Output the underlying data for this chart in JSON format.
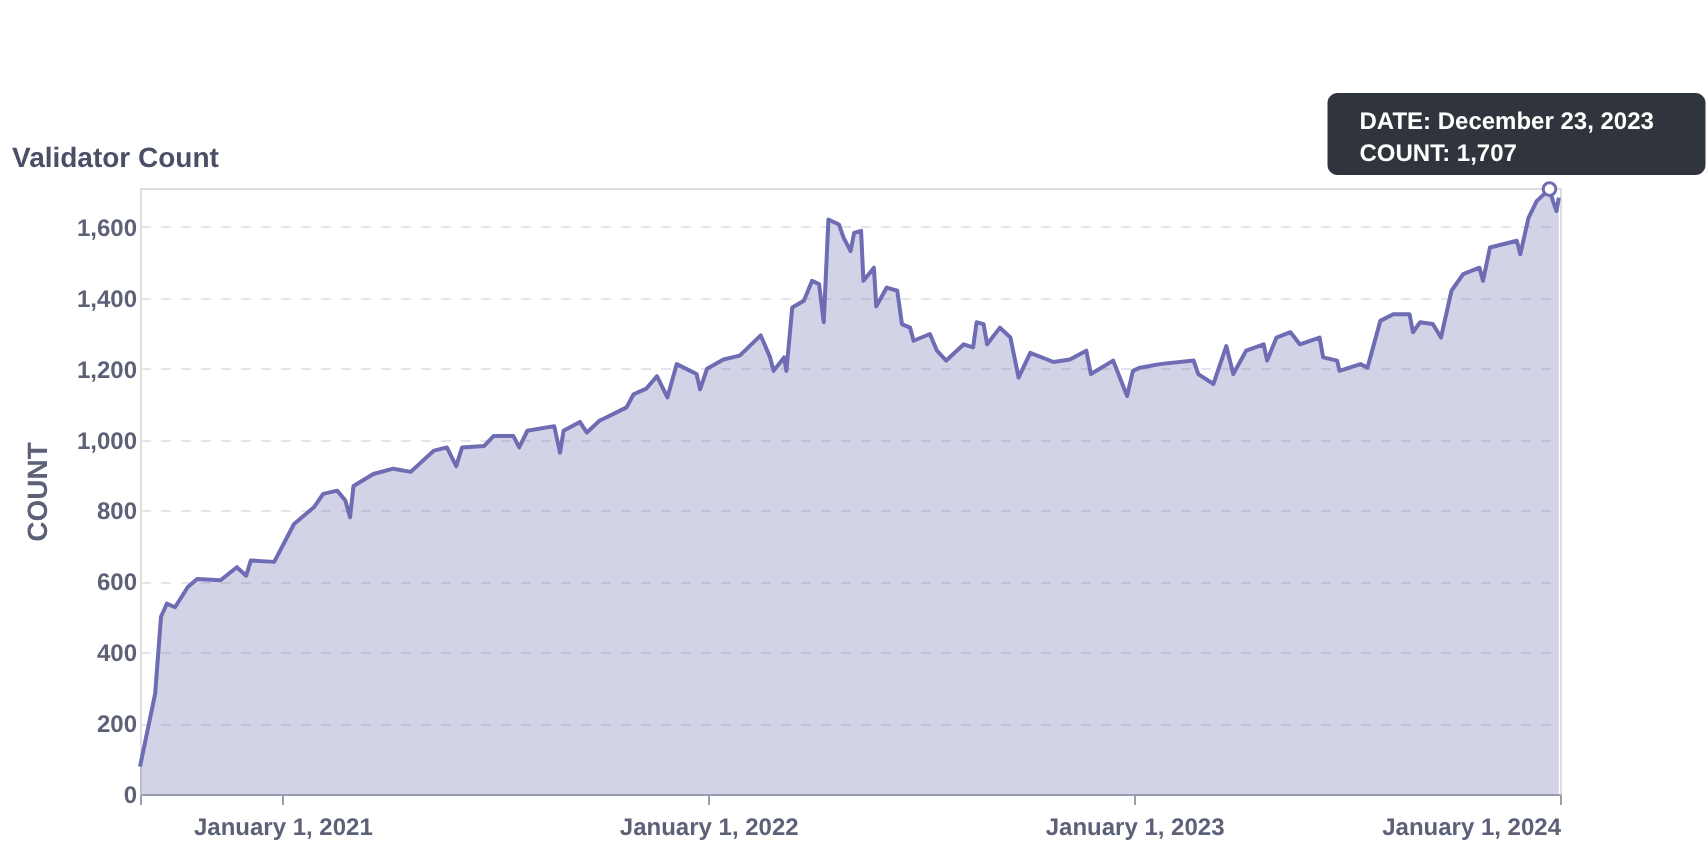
{
  "chart_data": {
    "type": "area",
    "title": "Validator Count",
    "ylabel": "COUNT",
    "x": [
      "2020-09-01",
      "2020-09-14",
      "2020-09-19",
      "2020-09-24",
      "2020-10-01",
      "2020-10-12",
      "2020-10-20",
      "2020-11-09",
      "2020-11-23",
      "2020-12-01",
      "2020-12-05",
      "2020-12-25",
      "2021-01-11",
      "2021-01-28",
      "2021-02-05",
      "2021-02-17",
      "2021-02-24",
      "2021-02-28",
      "2021-03-03",
      "2021-03-20",
      "2021-04-06",
      "2021-04-21",
      "2021-05-11",
      "2021-05-22",
      "2021-05-30",
      "2021-06-04",
      "2021-06-23",
      "2021-07-01",
      "2021-07-18",
      "2021-07-23",
      "2021-07-30",
      "2021-08-22",
      "2021-08-27",
      "2021-08-30",
      "2021-09-13",
      "2021-09-19",
      "2021-09-30",
      "2021-10-06",
      "2021-10-23",
      "2021-10-29",
      "2021-11-09",
      "2021-11-18",
      "2021-11-27",
      "2021-12-05",
      "2021-12-22",
      "2021-12-25",
      "2021-12-31",
      "2022-01-14",
      "2022-01-28",
      "2022-02-15",
      "2022-02-23",
      "2022-02-26",
      "2022-03-07",
      "2022-03-09",
      "2022-03-14",
      "2022-03-24",
      "2022-03-31",
      "2022-04-06",
      "2022-04-10",
      "2022-04-14",
      "2022-04-23",
      "2022-04-27",
      "2022-05-03",
      "2022-05-06",
      "2022-05-12",
      "2022-05-14",
      "2022-05-23",
      "2022-05-25",
      "2022-06-03",
      "2022-06-12",
      "2022-06-16",
      "2022-06-23",
      "2022-06-26",
      "2022-07-10",
      "2022-07-16",
      "2022-07-24",
      "2022-08-08",
      "2022-08-16",
      "2022-08-19",
      "2022-08-25",
      "2022-08-28",
      "2022-09-08",
      "2022-09-17",
      "2022-09-24",
      "2022-10-04",
      "2022-10-24",
      "2022-11-07",
      "2022-11-21",
      "2022-11-25",
      "2022-12-14",
      "2022-12-26",
      "2022-12-31",
      "2023-01-06",
      "2023-01-23",
      "2023-02-21",
      "2023-02-25",
      "2023-03-10",
      "2023-03-21",
      "2023-03-27",
      "2023-04-07",
      "2023-04-22",
      "2023-04-25",
      "2023-05-03",
      "2023-05-15",
      "2023-05-23",
      "2023-06-09",
      "2023-06-12",
      "2023-06-24",
      "2023-06-26",
      "2023-07-14",
      "2023-07-20",
      "2023-07-31",
      "2023-08-11",
      "2023-08-25",
      "2023-08-28",
      "2023-09-03",
      "2023-09-14",
      "2023-09-21",
      "2023-09-30",
      "2023-10-10",
      "2023-10-24",
      "2023-10-27",
      "2023-11-02",
      "2023-11-25",
      "2023-11-28",
      "2023-12-05",
      "2023-12-12",
      "2023-12-23",
      "2023-12-26",
      "2023-12-29",
      "2023-12-31"
    ],
    "series": [
      {
        "color": "#6e6cb3",
        "values": [
          77,
          283,
          500,
          537,
          527,
          584,
          607,
          603,
          640,
          616,
          659,
          655,
          762,
          809,
          847,
          856,
          828,
          781,
          869,
          903,
          918,
          909,
          969,
          978,
          925,
          978,
          982,
          1010,
          1010,
          978,
          1025,
          1038,
          963,
          1025,
          1050,
          1020,
          1054,
          1063,
          1091,
          1128,
          1144,
          1179,
          1119,
          1213,
          1185,
          1142,
          1200,
          1226,
          1237,
          1294,
          1232,
          1194,
          1232,
          1194,
          1373,
          1392,
          1448,
          1439,
          1331,
          1621,
          1607,
          1570,
          1532,
          1583,
          1589,
          1448,
          1485,
          1376,
          1429,
          1420,
          1326,
          1316,
          1279,
          1298,
          1251,
          1223,
          1269,
          1260,
          1331,
          1326,
          1269,
          1316,
          1288,
          1175,
          1245,
          1219,
          1226,
          1251,
          1185,
          1223,
          1123,
          1194,
          1203,
          1213,
          1223,
          1185,
          1157,
          1264,
          1185,
          1251,
          1269,
          1223,
          1288,
          1303,
          1269,
          1288,
          1232,
          1223,
          1194,
          1213,
          1203,
          1335,
          1354,
          1354,
          1303,
          1331,
          1326,
          1288,
          1420,
          1467,
          1485,
          1448,
          1542,
          1561,
          1523,
          1626,
          1673,
          1707,
          1673,
          1645,
          1683
        ]
      }
    ],
    "xlim": [
      "2020-09-01",
      "2024-01-01"
    ],
    "xticks": [
      {
        "value": "2020-09-01",
        "label": null
      },
      {
        "value": "2021-01-01",
        "label": "January 1, 2021"
      },
      {
        "value": "2022-01-01",
        "label": "January 1, 2022"
      },
      {
        "value": "2023-01-01",
        "label": "January 1, 2023"
      },
      {
        "value": "2024-01-01",
        "label": "January 1, 2024"
      }
    ],
    "ylim": [
      0,
      1710
    ],
    "yticks": [
      0,
      200,
      400,
      600,
      800,
      {
        "value": 1000,
        "label": "1,000"
      },
      {
        "value": 1200,
        "label": "1,200"
      },
      {
        "value": 1400,
        "label": "1,400"
      },
      {
        "value": 1600,
        "label": "1,600"
      }
    ],
    "grid": "y",
    "annotations": [
      {
        "text": "DATE: December 23, 2023",
        "x": "2023-12-23",
        "y": 1707
      },
      {
        "text": "COUNT: 1,707",
        "x": "2023-12-23",
        "y": 1707
      }
    ]
  }
}
